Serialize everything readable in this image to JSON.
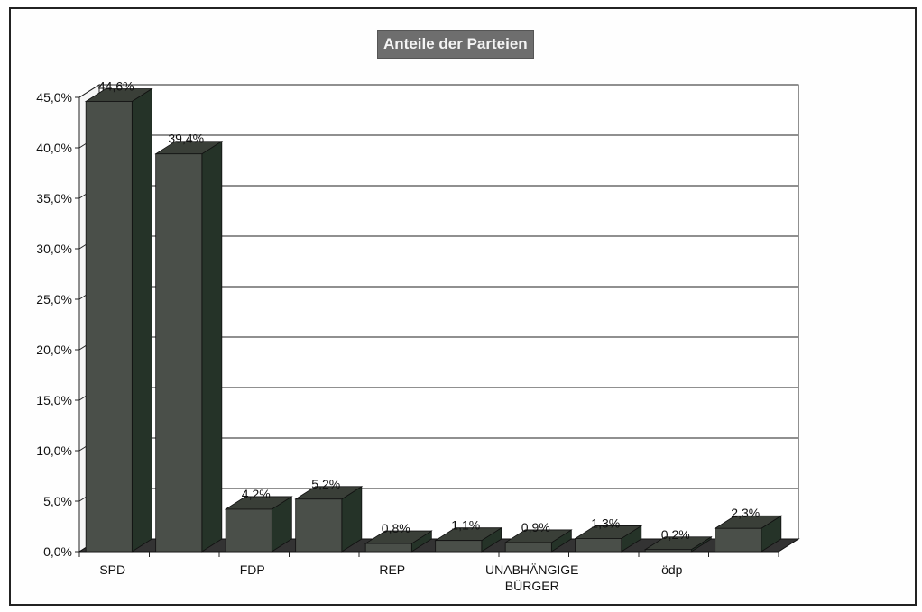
{
  "chart_data": {
    "type": "bar",
    "title": "Anteile der Parteien",
    "categories": [
      "SPD",
      "",
      "FDP",
      "",
      "REP",
      "",
      "UNABHÄNGIGE BÜRGER",
      "",
      "ödp",
      ""
    ],
    "values": [
      44.6,
      39.4,
      4.2,
      5.2,
      0.8,
      1.1,
      0.9,
      1.3,
      0.2,
      2.3
    ],
    "data_labels": [
      "44,6%",
      "39,4%",
      "4,2%",
      "5,2%",
      "0,8%",
      "1,1%",
      "0,9%",
      "1,3%",
      "0,2%",
      "2,3%"
    ],
    "xlabel": "",
    "ylabel": "",
    "ylim": [
      0,
      45
    ],
    "yticks": [
      "0,0%",
      "5,0%",
      "10,0%",
      "15,0%",
      "20,0%",
      "25,0%",
      "30,0%",
      "35,0%",
      "40,0%",
      "45,0%"
    ],
    "grid": true,
    "legend": "none"
  },
  "colors": {
    "bar_front": "#4a4f49",
    "bar_side": "#253328",
    "bar_top": "#3a3f38",
    "floor": "#333333",
    "grid": "#222222",
    "title_bg": "#6e6e6e"
  }
}
